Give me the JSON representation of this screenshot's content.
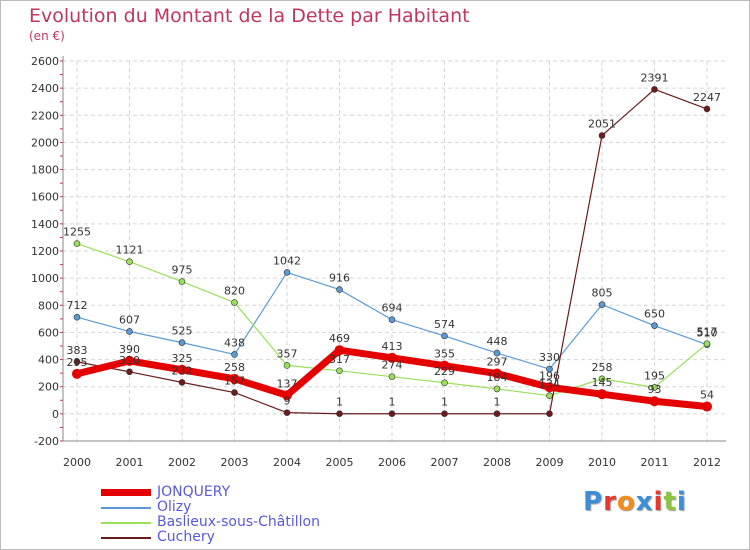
{
  "title": "Evolution du Montant de la Dette par Habitant",
  "subtitle": "(en €)",
  "brand": {
    "text": "Proxiti",
    "letter_colors": [
      "#3a8fd8",
      "#e8382e",
      "#f28c1e",
      "#3a8fd8",
      "#e8382e",
      "#8cc63f",
      "#3a8fd8"
    ]
  },
  "chart_data": {
    "type": "line",
    "x": [
      "2000",
      "2001",
      "2002",
      "2003",
      "2004",
      "2005",
      "2006",
      "2007",
      "2008",
      "2009",
      "2010",
      "2011",
      "2012"
    ],
    "ylim": [
      -200,
      2600
    ],
    "yticks": [
      "-200",
      "0",
      "200",
      "400",
      "600",
      "800",
      "1000",
      "1200",
      "1400",
      "1600",
      "1800",
      "2000",
      "2200",
      "2400",
      "2600"
    ],
    "grid": true,
    "legend_position": "bottom-left",
    "series": [
      {
        "name": "JONQUERY",
        "color": "#e50000",
        "line_width": 7,
        "values": [
          295,
          390,
          325,
          258,
          137,
          469,
          413,
          355,
          297,
          196,
          145,
          93,
          54
        ]
      },
      {
        "name": "Olizy",
        "color": "#5b9bd5",
        "line_width": 1.2,
        "values": [
          712,
          607,
          525,
          438,
          1042,
          916,
          694,
          574,
          448,
          330,
          805,
          650,
          510
        ]
      },
      {
        "name": "Baslieux-sous-Châtillon",
        "color": "#99e05a",
        "line_width": 1.2,
        "values": [
          1255,
          1121,
          975,
          820,
          357,
          317,
          274,
          229,
          184,
          134,
          258,
          195,
          517
        ]
      },
      {
        "name": "Cuchery",
        "color": "#6b1b1b",
        "line_width": 1.2,
        "values": [
          383,
          310,
          232,
          157,
          9,
          1,
          1,
          1,
          1,
          1,
          2051,
          2391,
          2247
        ]
      }
    ],
    "data_labels": [
      {
        "text": "1255",
        "x": 0,
        "v": 1255
      },
      {
        "text": "1121",
        "x": 1,
        "v": 1121
      },
      {
        "text": "975",
        "x": 2,
        "v": 975
      },
      {
        "text": "820",
        "x": 3,
        "v": 820
      },
      {
        "text": "712",
        "x": 0,
        "v": 712
      },
      {
        "text": "607",
        "x": 1,
        "v": 607
      },
      {
        "text": "525",
        "x": 2,
        "v": 525
      },
      {
        "text": "438",
        "x": 3,
        "v": 438
      },
      {
        "text": "1042",
        "x": 4,
        "v": 1042
      },
      {
        "text": "916",
        "x": 5,
        "v": 916
      },
      {
        "text": "694",
        "x": 6,
        "v": 694
      },
      {
        "text": "574",
        "x": 7,
        "v": 574
      },
      {
        "text": "448",
        "x": 8,
        "v": 448
      },
      {
        "text": "330",
        "x": 9,
        "v": 330
      },
      {
        "text": "805",
        "x": 10,
        "v": 805
      },
      {
        "text": "650",
        "x": 11,
        "v": 650
      },
      {
        "text": "510",
        "x": 12,
        "v": 510
      },
      {
        "text": "517",
        "x": 12,
        "v": 517
      },
      {
        "text": "383",
        "x": 0,
        "v": 383
      },
      {
        "text": "295",
        "x": 0,
        "v": 295
      },
      {
        "text": "390",
        "x": 1,
        "v": 390
      },
      {
        "text": "310",
        "x": 1,
        "v": 310
      },
      {
        "text": "325",
        "x": 2,
        "v": 325
      },
      {
        "text": "232",
        "x": 2,
        "v": 232
      },
      {
        "text": "258",
        "x": 3,
        "v": 258
      },
      {
        "text": "157",
        "x": 3,
        "v": 157
      },
      {
        "text": "357",
        "x": 4,
        "v": 357
      },
      {
        "text": "137",
        "x": 4,
        "v": 137
      },
      {
        "text": "9",
        "x": 4,
        "v": 9
      },
      {
        "text": "469",
        "x": 5,
        "v": 469
      },
      {
        "text": "317",
        "x": 5,
        "v": 317
      },
      {
        "text": "1",
        "x": 5,
        "v": 1
      },
      {
        "text": "413",
        "x": 6,
        "v": 413
      },
      {
        "text": "274",
        "x": 6,
        "v": 274
      },
      {
        "text": "1",
        "x": 6,
        "v": 1
      },
      {
        "text": "355",
        "x": 7,
        "v": 355
      },
      {
        "text": "229",
        "x": 7,
        "v": 229
      },
      {
        "text": "1",
        "x": 7,
        "v": 1
      },
      {
        "text": "297",
        "x": 8,
        "v": 297
      },
      {
        "text": "184",
        "x": 8,
        "v": 184
      },
      {
        "text": "1",
        "x": 8,
        "v": 1
      },
      {
        "text": "196",
        "x": 9,
        "v": 196
      },
      {
        "text": "134",
        "x": 9,
        "v": 134
      },
      {
        "text": "2051",
        "x": 10,
        "v": 2051
      },
      {
        "text": "258",
        "x": 10,
        "v": 258
      },
      {
        "text": "145",
        "x": 10,
        "v": 145
      },
      {
        "text": "2391",
        "x": 11,
        "v": 2391
      },
      {
        "text": "195",
        "x": 11,
        "v": 195
      },
      {
        "text": "93",
        "x": 11,
        "v": 93
      },
      {
        "text": "2247",
        "x": 12,
        "v": 2247
      },
      {
        "text": "54",
        "x": 12,
        "v": 54
      }
    ]
  }
}
